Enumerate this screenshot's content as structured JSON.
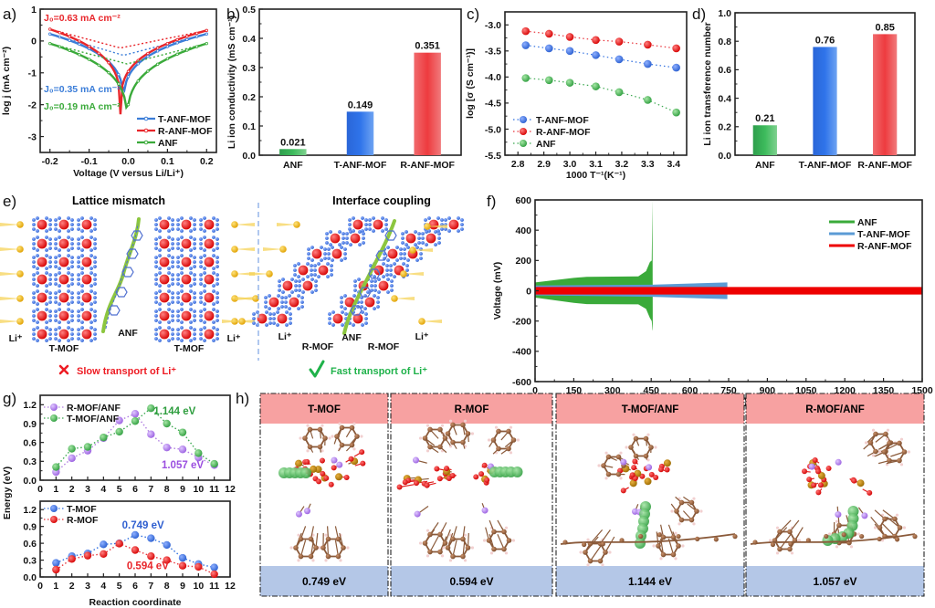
{
  "figure": {
    "panel_letters": [
      "a)",
      "b)",
      "c)",
      "d)",
      "e)",
      "f)",
      "g)",
      "h)"
    ]
  },
  "chart_data": [
    {
      "id": "a",
      "type": "line",
      "title": "",
      "xlabel": "Voltage (V versus Li/Li⁺)",
      "ylabel": "log j (mA cm⁻²)",
      "xlim": [
        -0.225,
        0.225
      ],
      "ylim": [
        -3.5,
        1
      ],
      "xticks": [
        "-0.2",
        "-0.1",
        "0.0",
        "0.1",
        "0.2"
      ],
      "xtick_values": [
        -0.2,
        -0.1,
        0.0,
        0.1,
        0.2
      ],
      "yticks": [
        "1",
        "0",
        "-1",
        "-2",
        "-3"
      ],
      "ytick_values": [
        1,
        0,
        -1,
        -2,
        -3
      ],
      "legend_position": "bottom-right",
      "series": [
        {
          "name": "T-ANF-MOF",
          "color": "#3b7dd8",
          "e0": -0.012,
          "left": 0.22,
          "right": 0.22,
          "min": -2.2,
          "j0_label": "J₀=0.35 mA cm⁻²",
          "tafel_min": -0.45
        },
        {
          "name": "R-ANF-MOF",
          "color": "#e8262b",
          "e0": -0.02,
          "left": 0.37,
          "right": 0.33,
          "min": -2.3,
          "j0_label": "J₀=0.63 mA cm⁻²",
          "tafel_min": -0.22
        },
        {
          "name": "ANF",
          "color": "#3aaa3a",
          "e0": -0.003,
          "left": -0.08,
          "right": -0.08,
          "min": -2.85,
          "j0_label": "J₀=0.19 mA cm⁻²",
          "tafel_min": -0.72
        }
      ]
    },
    {
      "id": "b",
      "type": "bar",
      "title": "",
      "xlabel": "",
      "ylabel": "Li ion conductivity (mS cm⁻¹)",
      "ylim": [
        0,
        0.5
      ],
      "yticks": [
        "0.0",
        "0.1",
        "0.2",
        "0.3",
        "0.4",
        "0.5"
      ],
      "categories": [
        "ANF",
        "T-ANF-MOF",
        "R-ANF-MOF"
      ],
      "values": [
        0.021,
        0.149,
        0.351
      ],
      "value_labels": [
        "0.021",
        "0.149",
        "0.351"
      ],
      "colors": [
        "#34a853",
        "#2e6fe0",
        "#ee3b3f"
      ]
    },
    {
      "id": "c",
      "type": "scatter",
      "title": "",
      "xlabel": "1000 T⁻¹(K⁻¹)",
      "ylabel": "log [σ (S cm⁻¹)]",
      "xlim": [
        2.75,
        3.45
      ],
      "ylim": [
        -5.5,
        -2.75
      ],
      "xticks": [
        "2.8",
        "2.9",
        "3.0",
        "3.1",
        "3.2",
        "3.3",
        "3.4"
      ],
      "yticks": [
        "-3.0",
        "-3.5",
        "-4.0",
        "-4.5",
        "-5.0",
        "-5.5"
      ],
      "legend_position": "bottom-left",
      "x": [
        2.83,
        2.92,
        3.0,
        3.1,
        3.19,
        3.3,
        3.41
      ],
      "series": [
        {
          "name": "T-ANF-MOF",
          "color": "#2f6fe0",
          "values": [
            -3.39,
            -3.45,
            -3.5,
            -3.58,
            -3.66,
            -3.75,
            -3.82
          ]
        },
        {
          "name": "R-ANF-MOF",
          "color": "#e8323a",
          "values": [
            -3.12,
            -3.17,
            -3.23,
            -3.29,
            -3.32,
            -3.38,
            -3.45
          ]
        },
        {
          "name": "ANF",
          "color": "#3aa84f",
          "values": [
            -4.02,
            -4.06,
            -4.11,
            -4.18,
            -4.29,
            -4.44,
            -4.68
          ]
        }
      ]
    },
    {
      "id": "d",
      "type": "bar",
      "title": "",
      "xlabel": "",
      "ylabel": "Li ion transference number",
      "ylim": [
        0,
        1.0
      ],
      "yticks": [
        "0.0",
        "0.2",
        "0.4",
        "0.6",
        "0.8",
        "1.0"
      ],
      "categories": [
        "ANF",
        "T-ANF-MOF",
        "R-ANF-MOF"
      ],
      "values": [
        0.21,
        0.76,
        0.85
      ],
      "value_labels": [
        "0.21",
        "0.76",
        "0.85"
      ],
      "colors": [
        "#34a853",
        "#2e6fe0",
        "#ee3b3f"
      ]
    },
    {
      "id": "f",
      "type": "area",
      "title": "",
      "xlabel": "Time (h)",
      "ylabel": "Voltage (mV)",
      "xlim": [
        0,
        1500
      ],
      "ylim": [
        -600,
        600
      ],
      "xticks": [
        "0",
        "150",
        "300",
        "450",
        "600",
        "750",
        "900",
        "1050",
        "1200",
        "1350",
        "1500"
      ],
      "yticks": [
        "600",
        "400",
        "200",
        "0",
        "-200",
        "-400",
        "-600"
      ],
      "legend_position": "top-right",
      "series": [
        {
          "name": "ANF",
          "color": "#3aaa3a",
          "end_time": 455,
          "envelope": [
            [
              0,
              55
            ],
            [
              150,
              85
            ],
            [
              200,
              92
            ],
            [
              400,
              95
            ],
            [
              430,
              130
            ],
            [
              445,
              190
            ],
            [
              452,
              200
            ],
            [
              455,
              600
            ],
            [
              456,
              -260
            ]
          ],
          "lower_envelope": [
            [
              0,
              -45
            ],
            [
              150,
              -80
            ],
            [
              200,
              -88
            ],
            [
              400,
              -90
            ],
            [
              430,
              -120
            ],
            [
              445,
              -180
            ],
            [
              452,
              -200
            ],
            [
              455,
              -260
            ]
          ]
        },
        {
          "name": "T-ANF-MOF",
          "color": "#5b9bd5",
          "end_time": 745,
          "envelope": [
            [
              0,
              35
            ],
            [
              450,
              40
            ],
            [
              745,
              55
            ]
          ],
          "lower_envelope": [
            [
              0,
              -30
            ],
            [
              450,
              -40
            ],
            [
              745,
              -55
            ]
          ]
        },
        {
          "name": "R-ANF-MOF",
          "color": "#ee0000",
          "end_time": 1500,
          "envelope": [
            [
              0,
              25
            ],
            [
              1500,
              25
            ]
          ],
          "lower_envelope": [
            [
              0,
              -25
            ],
            [
              1500,
              -25
            ]
          ]
        }
      ]
    },
    {
      "id": "g-top",
      "type": "line",
      "title": "",
      "xlabel": "",
      "ylabel": "Energy (eV)",
      "xlim": [
        0,
        12
      ],
      "ylim": [
        0,
        1.35
      ],
      "xticks": [
        "0",
        "1",
        "2",
        "3",
        "4",
        "5",
        "6",
        "7",
        "8",
        "9",
        "10",
        "11",
        "12"
      ],
      "yticks": [
        "0.0",
        "0.3",
        "0.6",
        "0.9",
        "1.2"
      ],
      "legend_position": "top-left",
      "x": [
        1,
        2,
        3,
        4,
        5,
        6,
        7,
        8,
        9,
        10,
        11
      ],
      "series": [
        {
          "name": "R-MOF/ANF",
          "color": "#b07ee0",
          "values": [
            0.13,
            0.35,
            0.47,
            0.67,
            0.95,
            1.057,
            0.73,
            0.52,
            0.49,
            0.36,
            0.24
          ]
        },
        {
          "name": "T-MOF/ANF",
          "color": "#3aa84f",
          "values": [
            0.21,
            0.5,
            0.53,
            0.68,
            0.77,
            0.94,
            1.144,
            0.9,
            0.76,
            0.43,
            0.26
          ]
        }
      ],
      "annotations": [
        {
          "text": "1.144 eV",
          "color": "#2f9e3f",
          "x": 8.5,
          "y": 1.1
        },
        {
          "text": "1.057 eV",
          "color": "#9b4fe0",
          "x": 9.0,
          "y": 0.25
        }
      ]
    },
    {
      "id": "g-bottom",
      "type": "line",
      "title": "",
      "xlabel": "Reaction coordinate",
      "ylabel": "Energy (eV)",
      "xlim": [
        0,
        12
      ],
      "ylim": [
        0,
        1.35
      ],
      "xticks": [
        "0",
        "1",
        "2",
        "3",
        "4",
        "5",
        "6",
        "7",
        "8",
        "9",
        "10",
        "11",
        "12"
      ],
      "yticks": [
        "0.0",
        "0.3",
        "0.6",
        "0.9",
        "1.2"
      ],
      "legend_position": "top-left",
      "x": [
        1,
        2,
        3,
        4,
        5,
        6,
        7,
        8,
        9,
        10,
        11
      ],
      "series": [
        {
          "name": "T-MOF",
          "color": "#2f6fe0",
          "values": [
            0.25,
            0.37,
            0.42,
            0.58,
            0.6,
            0.749,
            0.69,
            0.57,
            0.34,
            0.23,
            0.17
          ]
        },
        {
          "name": "R-MOF",
          "color": "#e8323a",
          "values": [
            0.13,
            0.32,
            0.38,
            0.41,
            0.594,
            0.48,
            0.37,
            0.3,
            0.2,
            0.18,
            0.05
          ]
        }
      ],
      "annotations": [
        {
          "text": "0.749 eV",
          "color": "#2f5fd0",
          "x": 6.5,
          "y": 0.93
        },
        {
          "text": "0.594 eV",
          "color": "#e8262b",
          "x": 6.8,
          "y": 0.2
        }
      ]
    }
  ],
  "schematic_e": {
    "left": {
      "title": "Lattice mismatch",
      "labels": {
        "li_left": "Li⁺",
        "li_right": "Li⁺",
        "mof_left": "T-MOF",
        "anf": "ANF",
        "mof_right": "T-MOF"
      },
      "verdict_icon": "cross-icon",
      "verdict": "Slow transport of Li⁺",
      "verdict_color": "#ee1c24"
    },
    "right": {
      "title": "Interface coupling",
      "labels": {
        "li_left": "Li⁺",
        "li_right": "Li⁺",
        "mof_left": "R-MOF",
        "anf": "ANF",
        "mof_right": "R-MOF"
      },
      "verdict_icon": "check-icon",
      "verdict": "Fast transport of Li⁺",
      "verdict_color": "#1fb24a"
    },
    "colors": {
      "mof_node": "#ee1111",
      "mof_linker": "#3d6fd6",
      "li_ion": "#f4b400",
      "anf_ribbon": "#8cc63f"
    }
  },
  "structures_h": {
    "header_color": "#f7a1a1",
    "footer_color": "#b4c7e7",
    "items": [
      {
        "name": "T-MOF",
        "energy": "0.749 eV"
      },
      {
        "name": "R-MOF",
        "energy": "0.594 eV"
      },
      {
        "name": "T-MOF/ANF",
        "energy": "1.144 eV"
      },
      {
        "name": "R-MOF/ANF",
        "energy": "1.057 eV"
      }
    ]
  }
}
